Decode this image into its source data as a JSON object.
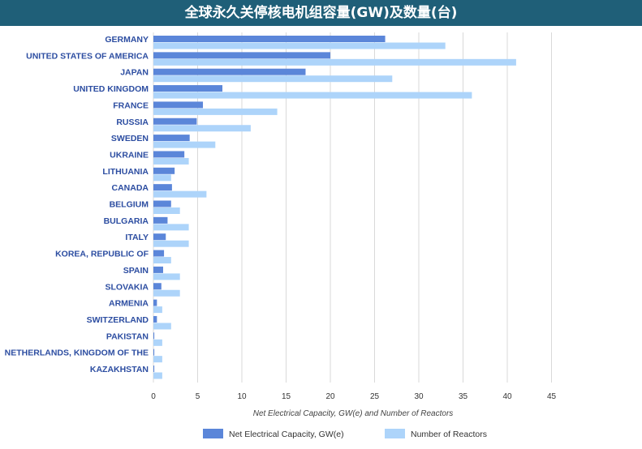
{
  "page": {
    "title": "全球永久关停核电机组容量(GW)及数量(台)"
  },
  "colors": {
    "title_bg": "#1f5f78",
    "capacity": "#5b86d9",
    "reactors": "#add4fa",
    "label": "#2c4da1",
    "grid": "#d9d9d9"
  },
  "chart_data": {
    "type": "bar",
    "orientation": "horizontal",
    "title": "全球永久关停核电机组容量(GW)及数量(台)",
    "xlabel": "Net Electrical Capacity, GW(e) and Number of Reactors",
    "ylabel": "",
    "xlim": [
      0,
      45
    ],
    "xticks": [
      0,
      5,
      10,
      15,
      20,
      25,
      30,
      35,
      40,
      45
    ],
    "grid": true,
    "legend_position": "bottom",
    "categories": [
      "GERMANY",
      "UNITED STATES OF AMERICA",
      "JAPAN",
      "UNITED KINGDOM",
      "FRANCE",
      "RUSSIA",
      "SWEDEN",
      "UKRAINE",
      "LITHUANIA",
      "CANADA",
      "BELGIUM",
      "BULGARIA",
      "ITALY",
      "KOREA, REPUBLIC OF",
      "SPAIN",
      "SLOVAKIA",
      "ARMENIA",
      "SWITZERLAND",
      "PAKISTAN",
      "NETHERLANDS, KINGDOM OF THE",
      "KAZAKHSTAN"
    ],
    "series": [
      {
        "name": "Net Electrical Capacity, GW(e)",
        "color": "#5b86d9",
        "values": [
          26.2,
          20.0,
          17.2,
          7.8,
          5.6,
          4.9,
          4.1,
          3.5,
          2.4,
          2.1,
          2.0,
          1.6,
          1.4,
          1.2,
          1.1,
          0.9,
          0.4,
          0.4,
          0.1,
          0.1,
          0.1
        ]
      },
      {
        "name": "Number of Reactors",
        "color": "#add4fa",
        "values": [
          33,
          41,
          27,
          36,
          14,
          11,
          7,
          4,
          2,
          6,
          3,
          4,
          4,
          2,
          3,
          3,
          1,
          2,
          1,
          1,
          1
        ]
      }
    ]
  }
}
